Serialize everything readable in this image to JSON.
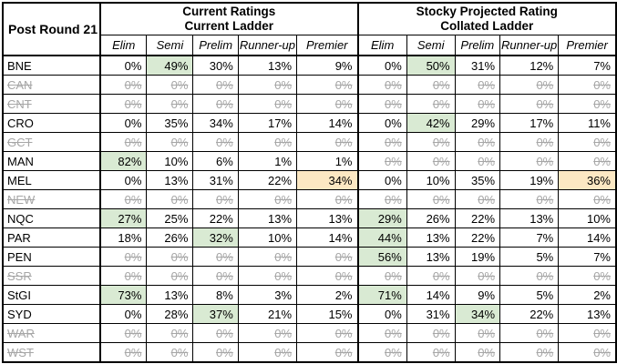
{
  "title": "Post Round 21",
  "groups": [
    {
      "line1": "Current Ratings",
      "line2": "Current Ladder"
    },
    {
      "line1": "Stocky Projected Rating",
      "line2": "Collated Ladder"
    }
  ],
  "sub_headers": [
    "Elim",
    "Semi",
    "Prelim",
    "Runner-up",
    "Premier"
  ],
  "colors": {
    "highlight_green": "#d9ead3",
    "highlight_orange": "#fce8c3",
    "struck_text": "#a6a6a6",
    "border": "#000000"
  },
  "rows": [
    {
      "team": "BNE",
      "team_struck": false,
      "current": {
        "values": [
          "0%",
          "49%",
          "30%",
          "13%",
          "9%"
        ],
        "struck": false,
        "highlights": [
          "",
          "g",
          "",
          "",
          ""
        ]
      },
      "projected": {
        "values": [
          "0%",
          "50%",
          "31%",
          "12%",
          "7%"
        ],
        "struck": false,
        "highlights": [
          "",
          "g",
          "",
          "",
          ""
        ]
      }
    },
    {
      "team": "CAN",
      "team_struck": true,
      "current": {
        "values": [
          "0%",
          "0%",
          "0%",
          "0%",
          "0%"
        ],
        "struck": true,
        "highlights": [
          "",
          "",
          "",
          "",
          ""
        ]
      },
      "projected": {
        "values": [
          "0%",
          "0%",
          "0%",
          "0%",
          "0%"
        ],
        "struck": true,
        "highlights": [
          "",
          "",
          "",
          "",
          ""
        ]
      }
    },
    {
      "team": "CNT",
      "team_struck": true,
      "current": {
        "values": [
          "0%",
          "0%",
          "0%",
          "0%",
          "0%"
        ],
        "struck": true,
        "highlights": [
          "",
          "",
          "",
          "",
          ""
        ]
      },
      "projected": {
        "values": [
          "0%",
          "0%",
          "0%",
          "0%",
          "0%"
        ],
        "struck": true,
        "highlights": [
          "",
          "",
          "",
          "",
          ""
        ]
      }
    },
    {
      "team": "CRO",
      "team_struck": false,
      "current": {
        "values": [
          "0%",
          "35%",
          "34%",
          "17%",
          "14%"
        ],
        "struck": false,
        "highlights": [
          "",
          "",
          "",
          "",
          ""
        ]
      },
      "projected": {
        "values": [
          "0%",
          "42%",
          "29%",
          "17%",
          "11%"
        ],
        "struck": false,
        "highlights": [
          "",
          "g",
          "",
          "",
          ""
        ]
      }
    },
    {
      "team": "GCT",
      "team_struck": true,
      "current": {
        "values": [
          "0%",
          "0%",
          "0%",
          "0%",
          "0%"
        ],
        "struck": true,
        "highlights": [
          "",
          "",
          "",
          "",
          ""
        ]
      },
      "projected": {
        "values": [
          "0%",
          "0%",
          "0%",
          "0%",
          "0%"
        ],
        "struck": true,
        "highlights": [
          "",
          "",
          "",
          "",
          ""
        ]
      }
    },
    {
      "team": "MAN",
      "team_struck": false,
      "current": {
        "values": [
          "82%",
          "10%",
          "6%",
          "1%",
          "1%"
        ],
        "struck": false,
        "highlights": [
          "g",
          "",
          "",
          "",
          ""
        ]
      },
      "projected": {
        "values": [
          "0%",
          "0%",
          "0%",
          "0%",
          "0%"
        ],
        "struck": true,
        "highlights": [
          "",
          "",
          "",
          "",
          ""
        ]
      }
    },
    {
      "team": "MEL",
      "team_struck": false,
      "current": {
        "values": [
          "0%",
          "13%",
          "31%",
          "22%",
          "34%"
        ],
        "struck": false,
        "highlights": [
          "",
          "",
          "",
          "",
          "o"
        ]
      },
      "projected": {
        "values": [
          "0%",
          "10%",
          "35%",
          "19%",
          "36%"
        ],
        "struck": false,
        "highlights": [
          "",
          "",
          "",
          "",
          "o"
        ]
      }
    },
    {
      "team": "NEW",
      "team_struck": true,
      "current": {
        "values": [
          "0%",
          "0%",
          "0%",
          "0%",
          "0%"
        ],
        "struck": true,
        "highlights": [
          "",
          "",
          "",
          "",
          ""
        ]
      },
      "projected": {
        "values": [
          "0%",
          "0%",
          "0%",
          "0%",
          "0%"
        ],
        "struck": true,
        "highlights": [
          "",
          "",
          "",
          "",
          ""
        ]
      }
    },
    {
      "team": "NQC",
      "team_struck": false,
      "current": {
        "values": [
          "27%",
          "25%",
          "22%",
          "13%",
          "13%"
        ],
        "struck": false,
        "highlights": [
          "g",
          "",
          "",
          "",
          ""
        ]
      },
      "projected": {
        "values": [
          "29%",
          "26%",
          "22%",
          "13%",
          "10%"
        ],
        "struck": false,
        "highlights": [
          "g",
          "",
          "",
          "",
          ""
        ]
      }
    },
    {
      "team": "PAR",
      "team_struck": false,
      "current": {
        "values": [
          "18%",
          "26%",
          "32%",
          "10%",
          "14%"
        ],
        "struck": false,
        "highlights": [
          "",
          "",
          "g",
          "",
          ""
        ]
      },
      "projected": {
        "values": [
          "44%",
          "13%",
          "22%",
          "7%",
          "14%"
        ],
        "struck": false,
        "highlights": [
          "g",
          "",
          "",
          "",
          ""
        ]
      }
    },
    {
      "team": "PEN",
      "team_struck": false,
      "current": {
        "values": [
          "0%",
          "0%",
          "0%",
          "0%",
          "0%"
        ],
        "struck": true,
        "highlights": [
          "",
          "",
          "",
          "",
          ""
        ]
      },
      "projected": {
        "values": [
          "56%",
          "13%",
          "19%",
          "5%",
          "7%"
        ],
        "struck": false,
        "highlights": [
          "g",
          "",
          "",
          "",
          ""
        ]
      }
    },
    {
      "team": "SSR",
      "team_struck": true,
      "current": {
        "values": [
          "0%",
          "0%",
          "0%",
          "0%",
          "0%"
        ],
        "struck": true,
        "highlights": [
          "",
          "",
          "",
          "",
          ""
        ]
      },
      "projected": {
        "values": [
          "0%",
          "0%",
          "0%",
          "0%",
          "0%"
        ],
        "struck": true,
        "highlights": [
          "",
          "",
          "",
          "",
          ""
        ]
      }
    },
    {
      "team": "StGI",
      "team_struck": false,
      "current": {
        "values": [
          "73%",
          "13%",
          "8%",
          "3%",
          "2%"
        ],
        "struck": false,
        "highlights": [
          "g",
          "",
          "",
          "",
          ""
        ]
      },
      "projected": {
        "values": [
          "71%",
          "14%",
          "9%",
          "5%",
          "2%"
        ],
        "struck": false,
        "highlights": [
          "g",
          "",
          "",
          "",
          ""
        ]
      }
    },
    {
      "team": "SYD",
      "team_struck": false,
      "current": {
        "values": [
          "0%",
          "28%",
          "37%",
          "21%",
          "15%"
        ],
        "struck": false,
        "highlights": [
          "",
          "",
          "g",
          "",
          ""
        ]
      },
      "projected": {
        "values": [
          "0%",
          "31%",
          "34%",
          "22%",
          "13%"
        ],
        "struck": false,
        "highlights": [
          "",
          "",
          "g",
          "",
          ""
        ]
      }
    },
    {
      "team": "WAR",
      "team_struck": true,
      "current": {
        "values": [
          "0%",
          "0%",
          "0%",
          "0%",
          "0%"
        ],
        "struck": true,
        "highlights": [
          "",
          "",
          "",
          "",
          ""
        ]
      },
      "projected": {
        "values": [
          "0%",
          "0%",
          "0%",
          "0%",
          "0%"
        ],
        "struck": true,
        "highlights": [
          "",
          "",
          "",
          "",
          ""
        ]
      }
    },
    {
      "team": "WST",
      "team_struck": true,
      "current": {
        "values": [
          "0%",
          "0%",
          "0%",
          "0%",
          "0%"
        ],
        "struck": true,
        "highlights": [
          "",
          "",
          "",
          "",
          ""
        ]
      },
      "projected": {
        "values": [
          "0%",
          "0%",
          "0%",
          "0%",
          "0%"
        ],
        "struck": true,
        "highlights": [
          "",
          "",
          "",
          "",
          ""
        ]
      }
    }
  ]
}
